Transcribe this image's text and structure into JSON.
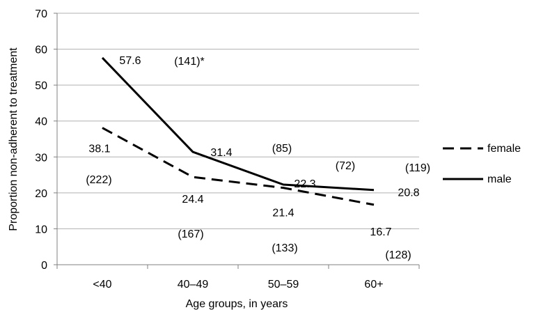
{
  "chart_data": {
    "type": "line",
    "categories": [
      "<40",
      "40–49",
      "50–59",
      "60+"
    ],
    "series": [
      {
        "name": "female",
        "style": "dashed",
        "values": [
          38.1,
          24.4,
          21.4,
          16.7
        ],
        "value_labels": [
          "38.1",
          "24.4",
          "21.4",
          "16.7"
        ],
        "counts": [
          "(222)",
          "(167)",
          "(133)",
          "(128)"
        ]
      },
      {
        "name": "male",
        "style": "solid",
        "values": [
          57.6,
          31.4,
          22.3,
          20.8
        ],
        "value_labels": [
          "57.6",
          "31.4",
          "22.3",
          "20.8"
        ],
        "counts": [
          "(141)*",
          "(85)",
          "(72)",
          "(119)"
        ]
      }
    ],
    "yticks": [
      "0",
      "10",
      "20",
      "30",
      "40",
      "50",
      "60",
      "70"
    ],
    "ylim": [
      0,
      70
    ],
    "xlabel": "Age groups, in years",
    "ylabel": "Proportion non-adherent to treatment",
    "grid": true,
    "legend_position": "right",
    "colors": {
      "line": "#000000",
      "grid": "#b0b0b0"
    }
  }
}
